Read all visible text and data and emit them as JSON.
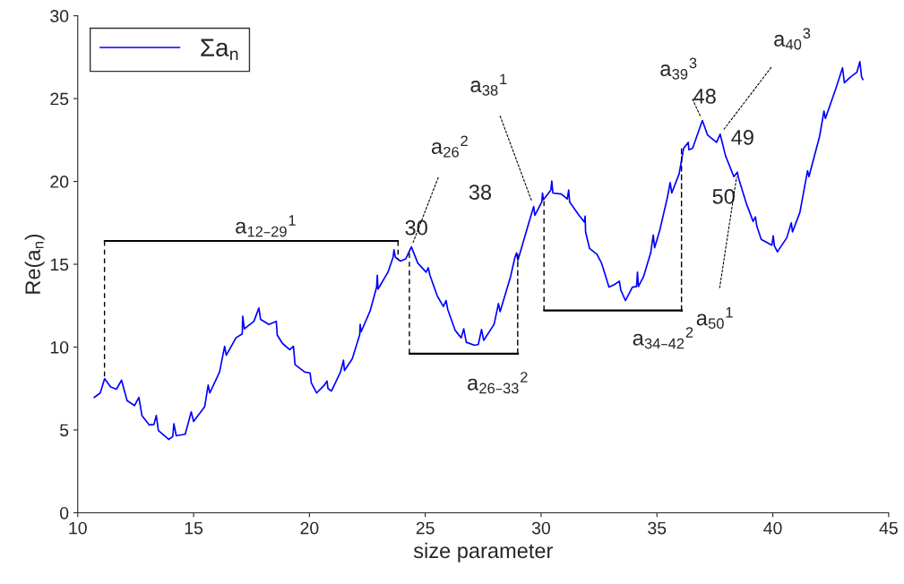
{
  "chart_data": {
    "type": "line",
    "xlabel": "size parameter",
    "ylabel": "Re(a$_{n}$)",
    "xlim": [
      10,
      45
    ],
    "ylim": [
      0,
      30
    ],
    "xticks": [
      10,
      15,
      20,
      25,
      30,
      35,
      40,
      45
    ],
    "yticks": [
      0,
      5,
      10,
      15,
      20,
      25,
      30
    ],
    "grid": false,
    "legend": "top left",
    "line_style": "solid",
    "marker": "none",
    "series": [
      {
        "name": "Σa$_{n}$",
        "color": "#0000ff",
        "x": [
          10.71,
          10.97,
          11.16,
          11.42,
          11.67,
          11.89,
          12.13,
          12.45,
          12.64,
          12.77,
          13.09,
          13.29,
          13.39,
          13.48,
          13.93,
          14.1,
          14.15,
          14.25,
          14.64,
          14.9,
          15.0,
          15.48,
          15.63,
          15.7,
          16.12,
          16.34,
          16.41,
          16.83,
          17.1,
          17.12,
          17.19,
          17.6,
          17.82,
          17.89,
          18.25,
          18.57,
          18.61,
          18.83,
          19.15,
          19.31,
          19.38,
          19.8,
          20.03,
          20.08,
          20.31,
          20.63,
          20.76,
          20.8,
          20.95,
          21.34,
          21.47,
          21.51,
          21.85,
          22.17,
          22.19,
          22.23,
          22.62,
          22.9,
          22.93,
          22.96,
          23.39,
          23.61,
          23.65,
          23.71,
          23.93,
          24.16,
          24.4,
          24.68,
          25.04,
          25.13,
          25.2,
          25.52,
          25.78,
          25.9,
          25.97,
          26.29,
          26.55,
          26.66,
          26.77,
          27.13,
          27.29,
          27.43,
          27.52,
          27.97,
          28.16,
          28.23,
          28.68,
          28.87,
          28.94,
          29.0,
          29.45,
          29.68,
          29.73,
          30.03,
          30.06,
          30.1,
          30.42,
          30.46,
          30.51,
          30.87,
          31.13,
          31.19,
          31.23,
          31.64,
          31.87,
          31.9,
          31.92,
          32.09,
          32.41,
          32.61,
          32.69,
          32.93,
          33.16,
          33.38,
          33.44,
          33.64,
          33.94,
          34.12,
          34.16,
          34.2,
          34.42,
          34.73,
          34.84,
          34.9,
          35.12,
          35.45,
          35.57,
          35.64,
          35.96,
          36.15,
          36.35,
          36.38,
          36.54,
          36.96,
          37.18,
          37.57,
          37.73,
          37.8,
          37.96,
          38.32,
          38.47,
          38.52,
          38.86,
          39.15,
          39.25,
          39.31,
          39.5,
          39.96,
          40.02,
          40.07,
          40.2,
          40.6,
          40.8,
          40.85,
          41.17,
          41.5,
          41.56,
          42.02,
          42.21,
          42.27,
          42.72,
          43.01,
          43.09,
          43.37,
          43.63,
          43.76,
          43.83,
          43.89
        ],
        "values": [
          6.96,
          7.23,
          8.09,
          7.59,
          7.46,
          8.0,
          6.77,
          6.47,
          6.96,
          5.87,
          5.3,
          5.33,
          5.87,
          4.97,
          4.43,
          4.6,
          5.37,
          4.65,
          4.74,
          6.09,
          5.51,
          6.41,
          7.71,
          7.23,
          8.49,
          10.05,
          9.51,
          10.56,
          10.8,
          11.86,
          11.1,
          11.55,
          12.36,
          11.68,
          11.37,
          11.55,
          10.73,
          10.23,
          9.84,
          10.05,
          8.94,
          8.49,
          8.43,
          7.85,
          7.23,
          7.68,
          7.95,
          7.5,
          7.35,
          8.49,
          9.21,
          8.58,
          9.3,
          10.74,
          11.37,
          10.92,
          12.18,
          13.62,
          14.34,
          13.5,
          14.52,
          15.42,
          15.87,
          15.42,
          15.19,
          15.33,
          16.05,
          15.06,
          14.52,
          14.79,
          14.34,
          13.08,
          12.45,
          12.81,
          12.27,
          11.01,
          10.56,
          11.1,
          10.29,
          10.11,
          10.16,
          11.06,
          10.41,
          11.37,
          12.63,
          12.14,
          14.25,
          15.42,
          15.69,
          15.24,
          17.41,
          18.49,
          17.95,
          18.76,
          19.3,
          18.9,
          19.48,
          20.02,
          19.3,
          19.24,
          18.94,
          19.48,
          18.76,
          17.95,
          17.55,
          17.9,
          16.95,
          15.96,
          15.6,
          15.06,
          14.7,
          13.62,
          13.77,
          13.98,
          13.44,
          12.81,
          13.62,
          13.66,
          14.52,
          13.66,
          14.25,
          15.69,
          16.77,
          16.0,
          17.04,
          19.03,
          19.93,
          19.3,
          20.47,
          22.0,
          22.36,
          21.91,
          22.0,
          23.68,
          22.81,
          22.36,
          22.85,
          22.45,
          21.55,
          20.29,
          20.56,
          20.2,
          18.66,
          17.59,
          17.86,
          17.31,
          16.5,
          16.15,
          16.72,
          16.1,
          15.75,
          16.59,
          17.5,
          16.95,
          18.13,
          20.65,
          20.29,
          22.72,
          24.25,
          23.8,
          25.6,
          26.86,
          25.96,
          26.32,
          26.59,
          27.23,
          26.32,
          26.15
        ]
      }
    ],
    "annotations": [
      "a$_{12–29}$$^{1}$",
      {
        "text": "a$_{26–33}$$^{2}$",
        "x": 28.99,
        "y": 15.6
      },
      {
        "text": "a$_{34–42}$$^{2}$",
        "x": 36.06,
        "y": 22.0
      },
      {
        "text": "30",
        "x": 24.4,
        "y": 16.05
      },
      {
        "text": "38",
        "x": 29.68,
        "y": 18.49
      },
      {
        "text": "48",
        "x": 36.96,
        "y": 23.68
      },
      {
        "text": "49",
        "x": 37.73,
        "y": 22.85
      },
      {
        "text": "50",
        "x": 38.47,
        "y": 20.56
      },
      {
        "text": "a$_{26}$$^{2}$",
        "x": 24.4,
        "y": 16.05
      },
      {
        "text": "a$_{38}$$^{1}$",
        "x": 29.68,
        "y": 18.49
      },
      {
        "text": "a$_{39}$$^{3}$",
        "x": 36.96,
        "y": 23.68
      },
      {
        "text": "a$_{40}$$^{3}$",
        "x": 37.73,
        "y": 22.85
      },
      {
        "text": "a$_{50}$$^{1}$",
        "x": 38.47,
        "y": 20.56
      }
    ]
  }
}
